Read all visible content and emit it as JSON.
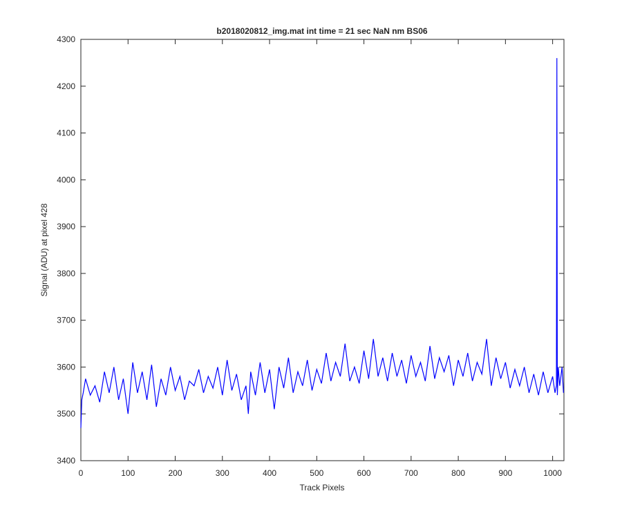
{
  "chart_data": {
    "type": "line",
    "title": "b2018020812_img.mat int time = 21 sec  NaN nm BS06",
    "xlabel": "Track Pixels",
    "ylabel": "Signal (ADU) at pixel 428",
    "x": [
      0,
      2,
      5,
      10,
      20,
      30,
      40,
      50,
      60,
      70,
      80,
      90,
      100,
      110,
      120,
      130,
      140,
      150,
      160,
      170,
      180,
      190,
      200,
      210,
      220,
      230,
      240,
      250,
      260,
      270,
      280,
      290,
      300,
      310,
      320,
      330,
      340,
      350,
      355,
      360,
      370,
      380,
      390,
      400,
      410,
      420,
      430,
      440,
      450,
      460,
      470,
      480,
      490,
      500,
      510,
      520,
      530,
      540,
      550,
      560,
      570,
      580,
      590,
      600,
      610,
      620,
      630,
      640,
      650,
      660,
      670,
      680,
      690,
      700,
      710,
      720,
      730,
      740,
      750,
      760,
      770,
      780,
      790,
      800,
      810,
      820,
      830,
      840,
      850,
      860,
      870,
      880,
      890,
      900,
      910,
      920,
      930,
      940,
      950,
      960,
      970,
      980,
      990,
      1000,
      1005,
      1008,
      1009,
      1010,
      1012,
      1015,
      1020,
      1023
    ],
    "series": [
      {
        "name": "signal",
        "color": "#0000ff",
        "values": [
          3470,
          3530,
          3545,
          3575,
          3540,
          3560,
          3525,
          3590,
          3545,
          3600,
          3530,
          3575,
          3500,
          3610,
          3545,
          3590,
          3530,
          3605,
          3515,
          3575,
          3540,
          3600,
          3550,
          3580,
          3530,
          3570,
          3560,
          3595,
          3545,
          3580,
          3555,
          3600,
          3540,
          3615,
          3550,
          3585,
          3530,
          3560,
          3500,
          3590,
          3540,
          3610,
          3545,
          3595,
          3510,
          3600,
          3555,
          3620,
          3545,
          3590,
          3560,
          3615,
          3550,
          3595,
          3565,
          3630,
          3570,
          3610,
          3580,
          3650,
          3570,
          3600,
          3565,
          3635,
          3575,
          3660,
          3580,
          3620,
          3570,
          3630,
          3580,
          3615,
          3565,
          3625,
          3580,
          3610,
          3570,
          3645,
          3575,
          3620,
          3590,
          3625,
          3560,
          3615,
          3580,
          3630,
          3570,
          3610,
          3585,
          3660,
          3560,
          3620,
          3575,
          3610,
          3555,
          3595,
          3560,
          3600,
          3545,
          3585,
          3540,
          3590,
          3545,
          3580,
          3545,
          3560,
          4260,
          3540,
          3600,
          3560,
          3600,
          3545
        ]
      }
    ],
    "xlim": [
      0,
      1024
    ],
    "ylim": [
      3400,
      4300
    ],
    "xticks": [
      0,
      100,
      200,
      300,
      400,
      500,
      600,
      700,
      800,
      900,
      1000
    ],
    "yticks": [
      3400,
      3500,
      3600,
      3700,
      3800,
      3900,
      4000,
      4100,
      4200,
      4300
    ]
  }
}
